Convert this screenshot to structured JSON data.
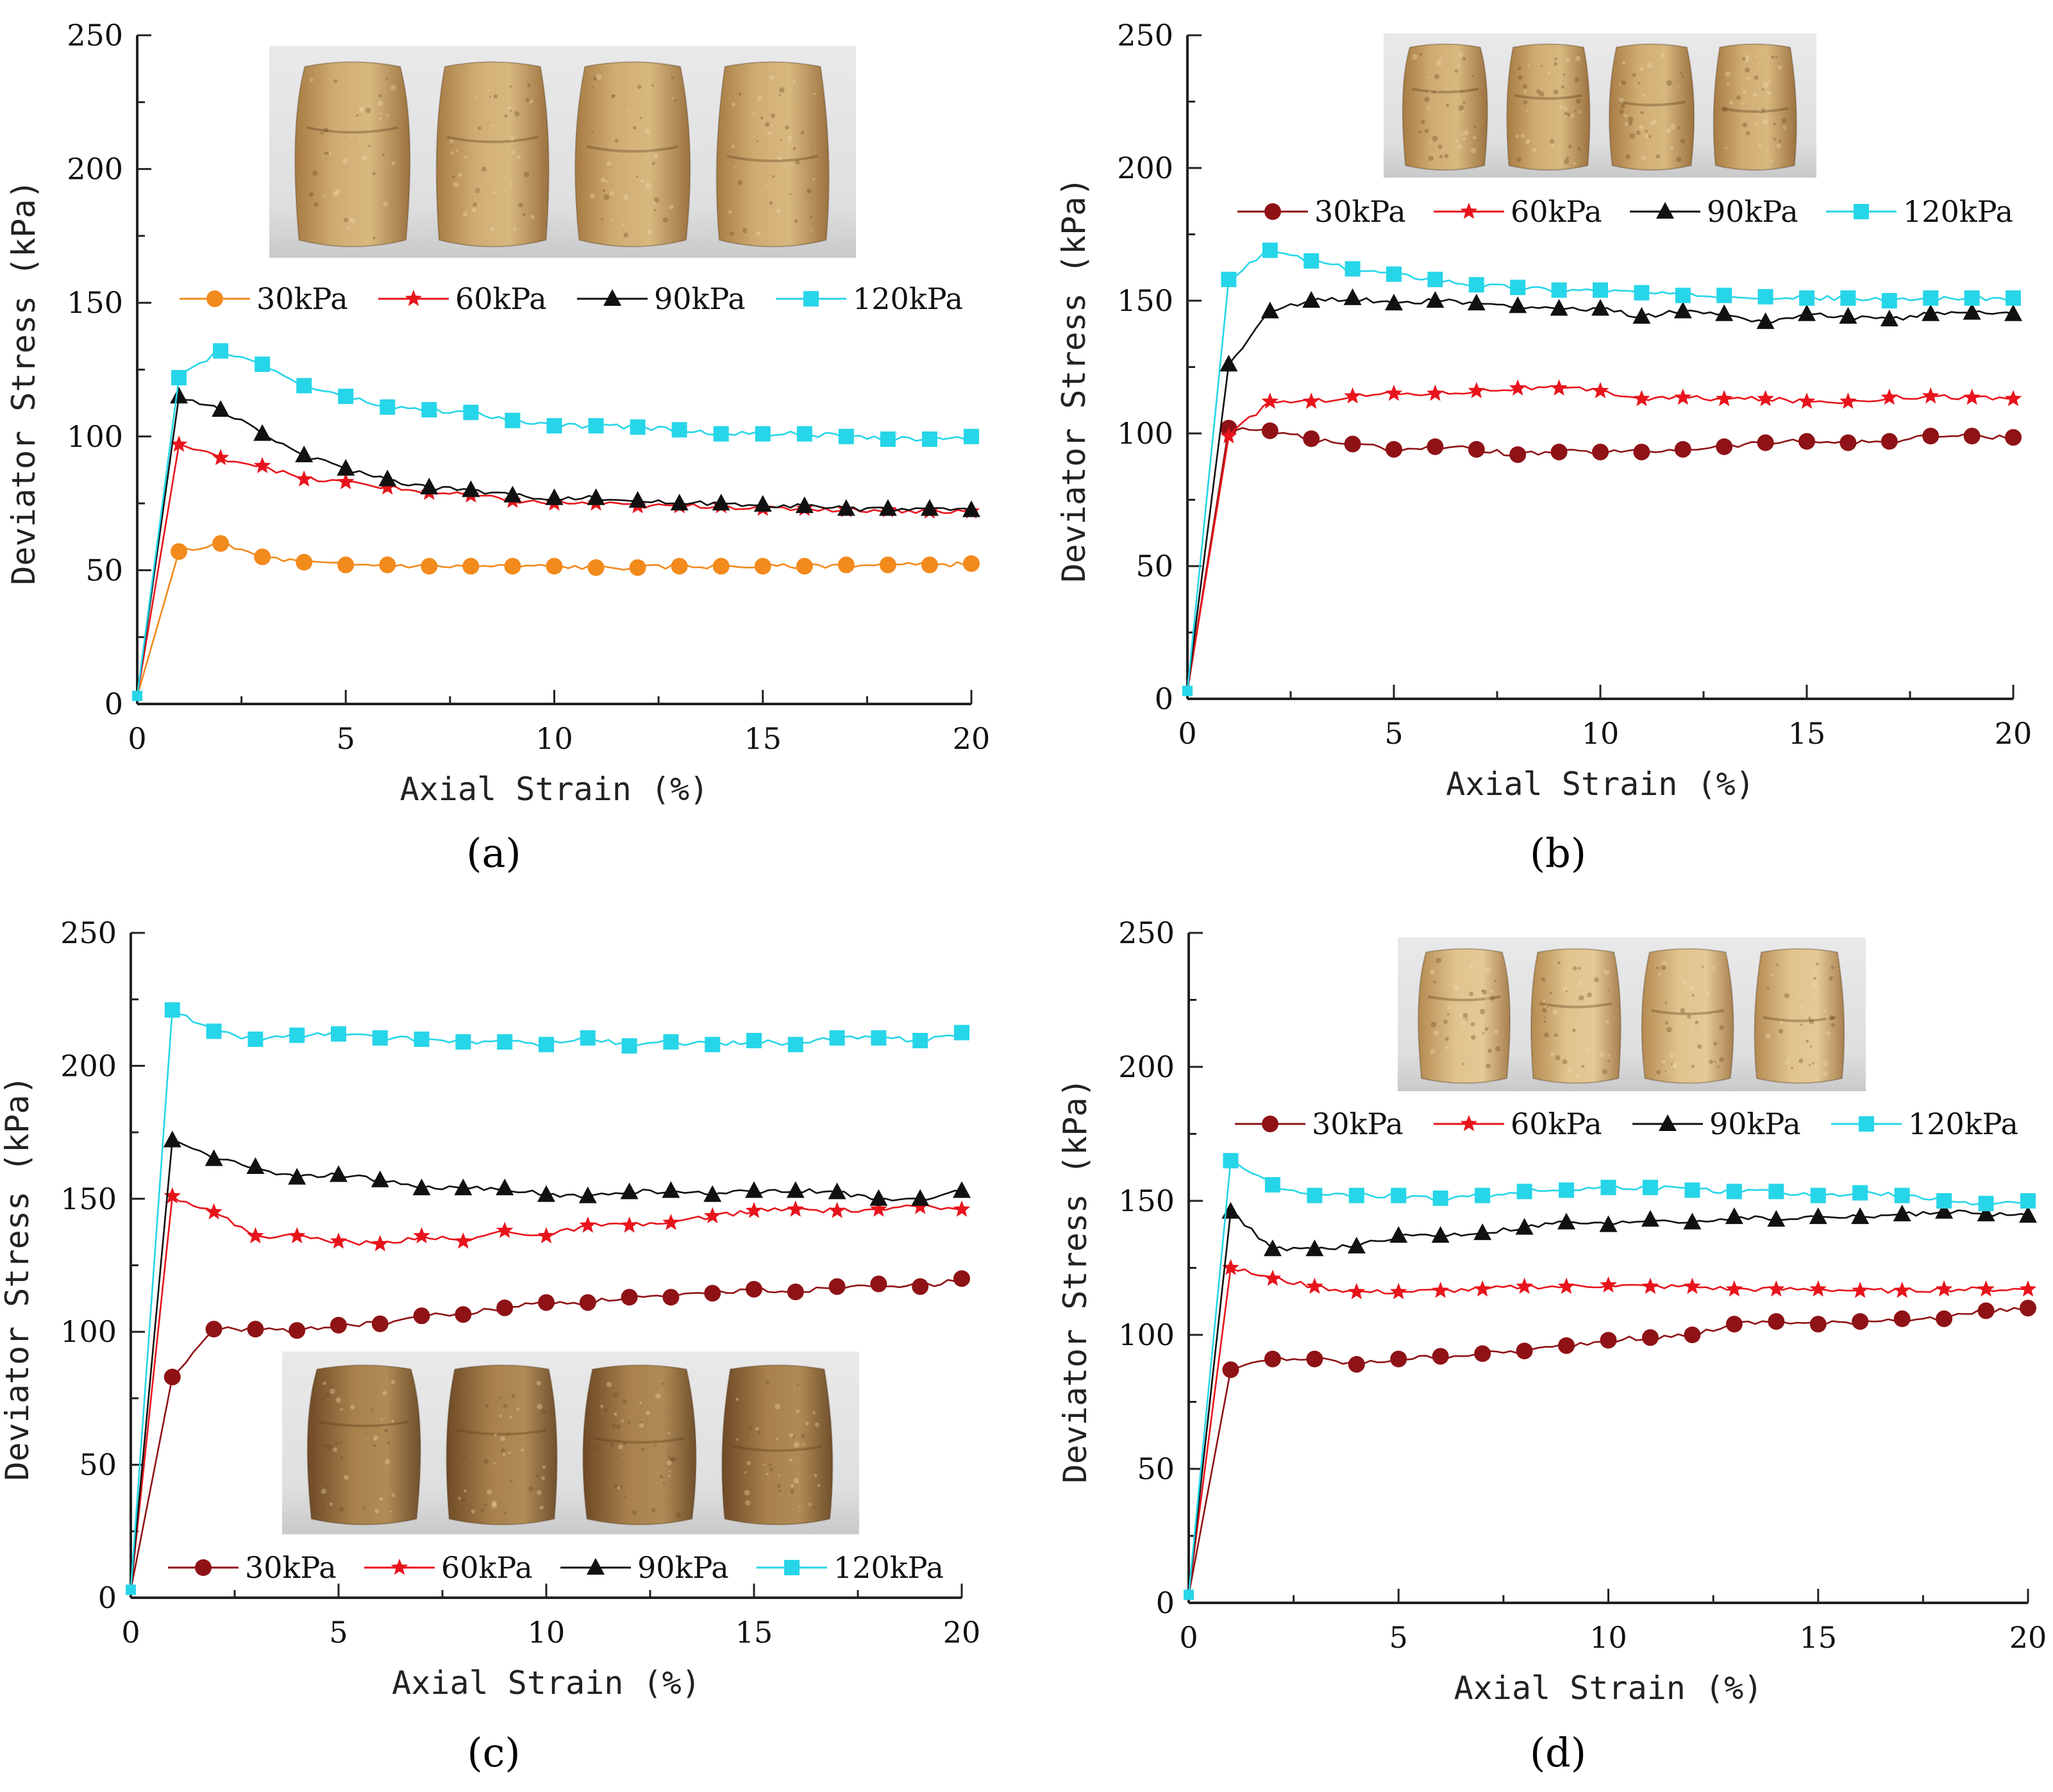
{
  "figure": {
    "panel_labels": [
      "(a)",
      "(b)",
      "(c)",
      "(d)"
    ]
  },
  "chart_data": [
    {
      "panel": "(a)",
      "type": "line",
      "xlabel": "Axial Strain (%)",
      "ylabel": "Deviator Stress (kPa)",
      "xlim": [
        0,
        20
      ],
      "ylim": [
        0,
        250
      ],
      "xticks": [
        "0",
        "5",
        "10",
        "15",
        "20"
      ],
      "yticks": [
        "0",
        "50",
        "100",
        "150",
        "200",
        "250"
      ],
      "legend_position": "upper-middle",
      "photo": "four deformed soil specimens (upper middle)",
      "x": [
        1,
        2,
        3,
        4,
        5,
        6,
        7,
        8,
        9,
        10,
        11,
        12,
        13,
        14,
        15,
        16,
        17,
        18,
        19,
        20
      ],
      "series": [
        {
          "name": "30kPa",
          "color": "#f28a1c",
          "marker": "circle",
          "start": [
            0,
            3
          ],
          "values": [
            57,
            60,
            55,
            53,
            52,
            52,
            51.5,
            51.5,
            51.5,
            51.5,
            51,
            51,
            51.5,
            51.5,
            51.5,
            51.5,
            52,
            52,
            52,
            52.5
          ]
        },
        {
          "name": "60kPa",
          "color": "#e8141c",
          "marker": "star",
          "start": [
            0,
            3
          ],
          "values": [
            97,
            92,
            89,
            84,
            83,
            81,
            79,
            78,
            76,
            75,
            75,
            74,
            74,
            74,
            73,
            73,
            72.5,
            72.5,
            72,
            72
          ]
        },
        {
          "name": "90kPa",
          "color": "#111111",
          "marker": "triangle",
          "start": [
            0,
            3
          ],
          "values": [
            115,
            110,
            101,
            93,
            88,
            84,
            81,
            80,
            78,
            77,
            77,
            76,
            75,
            75,
            74.5,
            74,
            73,
            73,
            73,
            72.5
          ]
        },
        {
          "name": "120kPa",
          "color": "#27d5e8",
          "marker": "square",
          "start": [
            0,
            3
          ],
          "values": [
            122,
            132,
            127,
            119,
            115,
            111,
            110,
            109,
            106,
            104,
            104,
            103.5,
            102.5,
            101,
            101,
            101,
            100,
            99,
            99,
            100
          ]
        }
      ]
    },
    {
      "panel": "(b)",
      "type": "line",
      "xlabel": "Axial Strain (%)",
      "ylabel": "Deviator Stress (kPa)",
      "xlim": [
        0,
        20
      ],
      "ylim": [
        0,
        250
      ],
      "xticks": [
        "0",
        "5",
        "10",
        "15",
        "20"
      ],
      "yticks": [
        "0",
        "50",
        "100",
        "150",
        "200",
        "250"
      ],
      "legend_position": "upper",
      "photo": "four deformed soil specimens (top)",
      "x": [
        1,
        2,
        3,
        4,
        5,
        6,
        7,
        8,
        9,
        10,
        11,
        12,
        13,
        14,
        15,
        16,
        17,
        18,
        19,
        20
      ],
      "series": [
        {
          "name": "30kPa",
          "color": "#8e1216",
          "marker": "circle",
          "start": [
            0,
            3
          ],
          "values": [
            102,
            101,
            98,
            96,
            94,
            95,
            94,
            92,
            93,
            93,
            93,
            94,
            95,
            96.5,
            97,
            96.5,
            97,
            99,
            99,
            98.5
          ]
        },
        {
          "name": "60kPa",
          "color": "#e8141c",
          "marker": "star",
          "start": [
            0,
            3
          ],
          "values": [
            99,
            112,
            112,
            114,
            115,
            115,
            116,
            117,
            117,
            116,
            113,
            113.5,
            113,
            113,
            112,
            112,
            113.5,
            114,
            113.5,
            113
          ]
        },
        {
          "name": "90kPa",
          "color": "#111111",
          "marker": "triangle",
          "start": [
            0,
            3
          ],
          "values": [
            126,
            146,
            150,
            151,
            149,
            150,
            149,
            148,
            147,
            147,
            144,
            146,
            145,
            142,
            145,
            144,
            143,
            145,
            145.5,
            145
          ]
        },
        {
          "name": "120kPa",
          "color": "#27d5e8",
          "marker": "square",
          "start": [
            0,
            3
          ],
          "values": [
            158,
            169,
            165,
            162,
            160,
            158,
            156,
            155,
            154,
            154,
            153,
            152,
            152,
            151.5,
            151,
            151,
            150,
            151,
            151,
            151
          ]
        }
      ]
    },
    {
      "panel": "(c)",
      "type": "line",
      "xlabel": "Axial Strain (%)",
      "ylabel": "Deviator Stress (kPa)",
      "xlim": [
        0,
        20
      ],
      "ylim": [
        0,
        250
      ],
      "xticks": [
        "0",
        "5",
        "10",
        "15",
        "20"
      ],
      "yticks": [
        "0",
        "50",
        "100",
        "150",
        "200",
        "250"
      ],
      "legend_position": "bottom",
      "photo": "four deformed soil specimens (lower middle)",
      "x": [
        1,
        2,
        3,
        4,
        5,
        6,
        7,
        8,
        9,
        10,
        11,
        12,
        13,
        14,
        15,
        16,
        17,
        18,
        19,
        20
      ],
      "series": [
        {
          "name": "30kPa",
          "color": "#8e1216",
          "marker": "circle",
          "start": [
            0,
            3
          ],
          "values": [
            83,
            101,
            101,
            100.5,
            102.5,
            103,
            106,
            106.5,
            109,
            111,
            111,
            113,
            113,
            114.5,
            116,
            115,
            117,
            118,
            117,
            120
          ]
        },
        {
          "name": "60kPa",
          "color": "#e8141c",
          "marker": "star",
          "start": [
            0,
            3
          ],
          "values": [
            151,
            145,
            136,
            136,
            134,
            133,
            136,
            134,
            138,
            136,
            140,
            140,
            141,
            143.5,
            145.5,
            146,
            145.5,
            146,
            147,
            146
          ]
        },
        {
          "name": "90kPa",
          "color": "#111111",
          "marker": "triangle",
          "start": [
            0,
            3
          ],
          "values": [
            172,
            165,
            162,
            158,
            159,
            157,
            154,
            154,
            154,
            151.5,
            151,
            152.5,
            153,
            151.5,
            153,
            153,
            152.5,
            150,
            150,
            153
          ]
        },
        {
          "name": "120kPa",
          "color": "#27d5e8",
          "marker": "square",
          "start": [
            0,
            3
          ],
          "values": [
            221,
            213,
            210,
            211.5,
            212,
            210.5,
            210,
            209,
            209,
            208,
            210.5,
            207.5,
            209,
            208,
            209.5,
            208,
            210.5,
            210.5,
            209.5,
            212.5
          ]
        }
      ]
    },
    {
      "panel": "(d)",
      "type": "line",
      "xlabel": "Axial Strain (%)",
      "ylabel": "Deviator Stress (kPa)",
      "xlim": [
        0,
        20
      ],
      "ylim": [
        0,
        250
      ],
      "xticks": [
        "0",
        "5",
        "10",
        "15",
        "20"
      ],
      "yticks": [
        "0",
        "50",
        "100",
        "150",
        "200",
        "250"
      ],
      "legend_position": "upper",
      "photo": "four deformed soil specimens (top)",
      "x": [
        1,
        2,
        3,
        4,
        5,
        6,
        7,
        8,
        9,
        10,
        11,
        12,
        13,
        14,
        15,
        16,
        17,
        18,
        19,
        20
      ],
      "series": [
        {
          "name": "30kPa",
          "color": "#8e1216",
          "marker": "circle",
          "start": [
            0,
            3
          ],
          "values": [
            87,
            91,
            91,
            89,
            91,
            92,
            93,
            94,
            96,
            98,
            99,
            100,
            104,
            105,
            104,
            105,
            106,
            106,
            109,
            110
          ]
        },
        {
          "name": "60kPa",
          "color": "#e8141c",
          "marker": "star",
          "start": [
            0,
            3
          ],
          "values": [
            125,
            121,
            118,
            116,
            116,
            116.5,
            117,
            118,
            118,
            118.5,
            118,
            118,
            117,
            117,
            117,
            116.5,
            116.5,
            117,
            117,
            117
          ]
        },
        {
          "name": "90kPa",
          "color": "#111111",
          "marker": "triangle",
          "start": [
            0,
            3
          ],
          "values": [
            146,
            132,
            132,
            133,
            137,
            137,
            138,
            140,
            142,
            141,
            143,
            142,
            144,
            143,
            144,
            144,
            145,
            146,
            145,
            144.5
          ]
        },
        {
          "name": "120kPa",
          "color": "#27d5e8",
          "marker": "square",
          "start": [
            0,
            3
          ],
          "values": [
            165,
            156,
            152,
            152,
            152,
            151,
            152,
            153.5,
            154,
            155,
            155,
            154,
            153.5,
            153.5,
            152,
            153,
            152,
            150,
            149,
            150
          ]
        }
      ]
    }
  ]
}
